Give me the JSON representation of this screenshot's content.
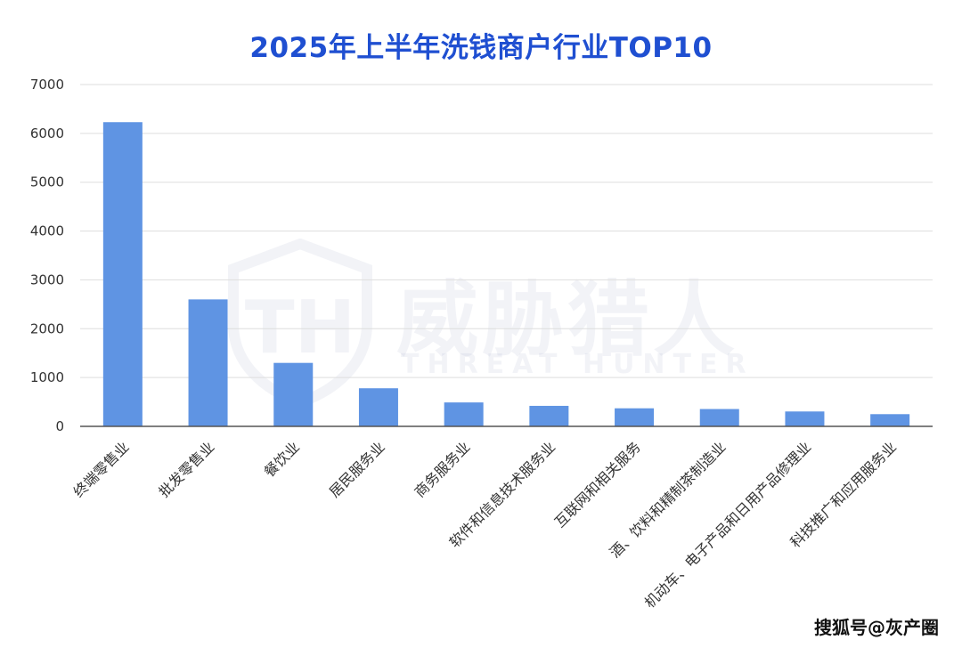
{
  "chart_data": {
    "type": "bar",
    "title": "2025年上半年洗钱商户行业TOP10",
    "xlabel": "",
    "ylabel": "",
    "ylim": [
      0,
      7000
    ],
    "yticks": [
      0,
      1000,
      2000,
      3000,
      4000,
      5000,
      6000,
      7000
    ],
    "grid": true,
    "legend": "none",
    "categories": [
      "终端零售业",
      "批发零售业",
      "餐饮业",
      "居民服务业",
      "商务服务业",
      "软件和信息技术服务业",
      "互联网和相关服务",
      "酒、饮料和精制茶制造业",
      "机动车、电子产品和日用产品修理业",
      "科技推广和应用服务业"
    ],
    "values": [
      6230,
      2600,
      1300,
      780,
      490,
      420,
      370,
      355,
      305,
      250
    ],
    "bar_color": "#5f94e3",
    "title_color": "#1f4fd1"
  },
  "watermark": {
    "logo_text": "TH",
    "name_cn": "威胁猎人",
    "name_en": "THREAT HUNTER"
  },
  "credit": "搜狐号@灰产圈"
}
